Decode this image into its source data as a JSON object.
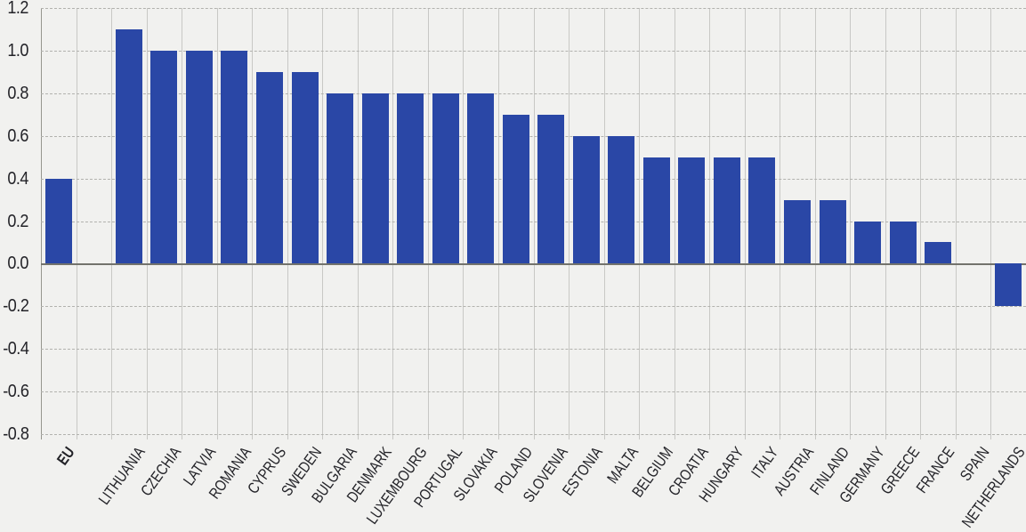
{
  "chart_data": {
    "type": "bar",
    "title": "",
    "xlabel": "",
    "ylabel": "",
    "categories": [
      "EU",
      "LITHUANIA",
      "CZECHIA",
      "LATVIA",
      "ROMANIA",
      "CYPRUS",
      "SWEDEN",
      "BULGARIA",
      "DENMARK",
      "LUXEMBOURG",
      "PORTUGAL",
      "SLOVAKIA",
      "POLAND",
      "SLOVENIA",
      "ESTONIA",
      "MALTA",
      "BELGIUM",
      "CROATIA",
      "HUNGARY",
      "ITALY",
      "AUSTRIA",
      "FINLAND",
      "GERMANY",
      "GREECE",
      "FRANCE",
      "SPAIN",
      "NETHERLANDS"
    ],
    "values": [
      0.4,
      1.1,
      1.0,
      1.0,
      1.0,
      0.9,
      0.9,
      0.8,
      0.8,
      0.8,
      0.8,
      0.8,
      0.7,
      0.7,
      0.6,
      0.6,
      0.5,
      0.5,
      0.5,
      0.5,
      0.3,
      0.3,
      0.2,
      0.2,
      0.1,
      0.0,
      -0.2
    ],
    "ylim": [
      -0.8,
      1.2
    ],
    "ytick_step": 0.2,
    "ytick_labels": [
      "1.2",
      "1.0",
      "0.8",
      "0.6",
      "0.4",
      "0.2",
      "0.0",
      "-0.2",
      "-0.4",
      "-0.6",
      "-0.8"
    ],
    "emphasized_category": "EU",
    "gap_after_first": true,
    "grid": {
      "horizontal": "dashed",
      "vertical": "solid",
      "zero_line": "solid"
    },
    "legend": null,
    "colors": {
      "bar": "#2a47a6",
      "background": "#f1f1ef",
      "zero_line": "#73736c",
      "gridline": "#c8c8c5",
      "text": "#232328"
    }
  }
}
